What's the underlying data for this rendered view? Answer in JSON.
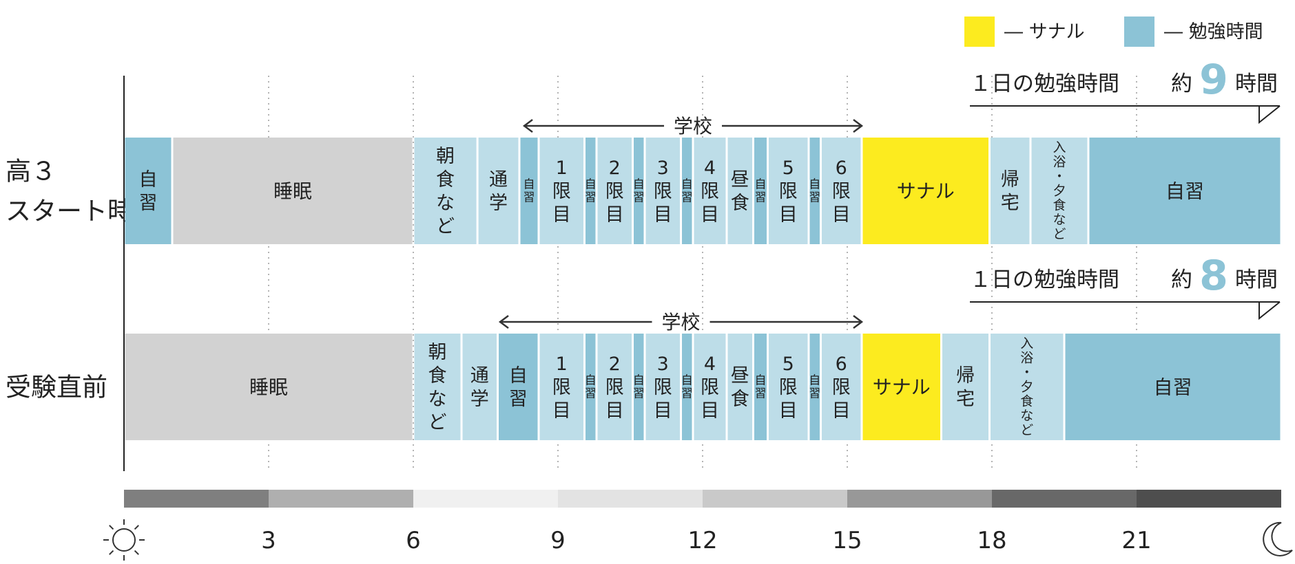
{
  "legend": [
    {
      "label": "― サナル",
      "color": "#FCEB1F"
    },
    {
      "label": "― 勉強時間",
      "color": "#8CC3D6"
    }
  ],
  "colors": {
    "study": "#8CC3D6",
    "other": "#BDDDE8",
    "sleep": "#D2D2D2",
    "sanaru": "#FCEB1F"
  },
  "time_axis": {
    "range": [
      0,
      24
    ],
    "tick_labels": [
      {
        "hour": 3,
        "label": "3"
      },
      {
        "hour": 6,
        "label": "6"
      },
      {
        "hour": 9,
        "label": "9"
      },
      {
        "hour": 12,
        "label": "12"
      },
      {
        "hour": 15,
        "label": "15"
      },
      {
        "hour": 18,
        "label": "18"
      },
      {
        "hour": 21,
        "label": "21"
      }
    ],
    "start_icon": "sun-icon",
    "end_icon": "moon-icon",
    "daylight_bands": [
      {
        "from": 0,
        "to": 3,
        "color": "#7F7F7F"
      },
      {
        "from": 3,
        "to": 6,
        "color": "#AFAFAF"
      },
      {
        "from": 6,
        "to": 9,
        "color": "#F0F0F0"
      },
      {
        "from": 9,
        "to": 12,
        "color": "#E3E3E3"
      },
      {
        "from": 12,
        "to": 15,
        "color": "#C9C9C9"
      },
      {
        "from": 15,
        "to": 18,
        "color": "#989898"
      },
      {
        "from": 18,
        "to": 21,
        "color": "#686868"
      },
      {
        "from": 21,
        "to": 24,
        "color": "#4E4E4E"
      }
    ]
  },
  "rows": [
    {
      "label_lines": [
        "高３",
        "スタート時"
      ],
      "summary": {
        "prefix": "１日の勉強時間",
        "approx": "約",
        "hours": "9",
        "unit": "時間"
      },
      "school": {
        "label": "学校",
        "from": 8.3,
        "to": 15.3
      },
      "blocks": [
        {
          "label": "自習",
          "from": 0,
          "to": 1,
          "kind": "study",
          "vertical": true
        },
        {
          "label": "睡眠",
          "from": 1,
          "to": 6,
          "kind": "sleep",
          "vertical": false
        },
        {
          "label": "朝食など",
          "from": 6,
          "to": 7.33,
          "kind": "other",
          "vertical": true
        },
        {
          "label": "通学",
          "from": 7.33,
          "to": 8.2,
          "kind": "other",
          "vertical": true
        },
        {
          "label": "自習",
          "from": 8.2,
          "to": 8.6,
          "kind": "study",
          "vertical": true,
          "small": true
        },
        {
          "label": "1限目",
          "from": 8.6,
          "to": 9.55,
          "kind": "other",
          "vertical": true
        },
        {
          "label": "自習",
          "from": 9.55,
          "to": 9.8,
          "kind": "study",
          "vertical": true,
          "small": true
        },
        {
          "label": "2限目",
          "from": 9.8,
          "to": 10.55,
          "kind": "other",
          "vertical": true
        },
        {
          "label": "自習",
          "from": 10.55,
          "to": 10.8,
          "kind": "study",
          "vertical": true,
          "small": true
        },
        {
          "label": "3限目",
          "from": 10.8,
          "to": 11.55,
          "kind": "other",
          "vertical": true
        },
        {
          "label": "自習",
          "from": 11.55,
          "to": 11.8,
          "kind": "study",
          "vertical": true,
          "small": true
        },
        {
          "label": "4限目",
          "from": 11.8,
          "to": 12.5,
          "kind": "other",
          "vertical": true
        },
        {
          "label": "昼食",
          "from": 12.5,
          "to": 13.05,
          "kind": "other",
          "vertical": true
        },
        {
          "label": "自習",
          "from": 13.05,
          "to": 13.35,
          "kind": "study",
          "vertical": true,
          "small": true
        },
        {
          "label": "5限目",
          "from": 13.35,
          "to": 14.2,
          "kind": "other",
          "vertical": true
        },
        {
          "label": "自習",
          "from": 14.2,
          "to": 14.45,
          "kind": "study",
          "vertical": true,
          "small": true
        },
        {
          "label": "6限目",
          "from": 14.45,
          "to": 15.3,
          "kind": "other",
          "vertical": true
        },
        {
          "label": "サナル",
          "from": 15.3,
          "to": 17.95,
          "kind": "sanaru",
          "vertical": false
        },
        {
          "label": "帰宅",
          "from": 17.95,
          "to": 18.8,
          "kind": "other",
          "vertical": true
        },
        {
          "label": "入浴・夕食など",
          "from": 18.8,
          "to": 20,
          "kind": "other",
          "vertical": true,
          "small": true
        },
        {
          "label": "自習",
          "from": 20,
          "to": 24,
          "kind": "study",
          "vertical": false
        }
      ]
    },
    {
      "label_lines": [
        "受験直前"
      ],
      "summary": {
        "prefix": "１日の勉強時間",
        "approx": "約",
        "hours": "8",
        "unit": "時間"
      },
      "school": {
        "label": "学校",
        "from": 7.8,
        "to": 15.3
      },
      "blocks": [
        {
          "label": "睡眠",
          "from": 0,
          "to": 6,
          "kind": "sleep",
          "vertical": false
        },
        {
          "label": "朝食など",
          "from": 6,
          "to": 7,
          "kind": "other",
          "vertical": true
        },
        {
          "label": "通学",
          "from": 7,
          "to": 7.75,
          "kind": "other",
          "vertical": true
        },
        {
          "label": "自習",
          "from": 7.75,
          "to": 8.6,
          "kind": "study",
          "vertical": true
        },
        {
          "label": "1限目",
          "from": 8.6,
          "to": 9.55,
          "kind": "other",
          "vertical": true
        },
        {
          "label": "自習",
          "from": 9.55,
          "to": 9.8,
          "kind": "study",
          "vertical": true,
          "small": true
        },
        {
          "label": "2限目",
          "from": 9.8,
          "to": 10.55,
          "kind": "other",
          "vertical": true
        },
        {
          "label": "自習",
          "from": 10.55,
          "to": 10.8,
          "kind": "study",
          "vertical": true,
          "small": true
        },
        {
          "label": "3限目",
          "from": 10.8,
          "to": 11.55,
          "kind": "other",
          "vertical": true
        },
        {
          "label": "自習",
          "from": 11.55,
          "to": 11.8,
          "kind": "study",
          "vertical": true,
          "small": true
        },
        {
          "label": "4限目",
          "from": 11.8,
          "to": 12.5,
          "kind": "other",
          "vertical": true
        },
        {
          "label": "昼食",
          "from": 12.5,
          "to": 13.05,
          "kind": "other",
          "vertical": true
        },
        {
          "label": "自習",
          "from": 13.05,
          "to": 13.35,
          "kind": "study",
          "vertical": true,
          "small": true
        },
        {
          "label": "5限目",
          "from": 13.35,
          "to": 14.2,
          "kind": "other",
          "vertical": true
        },
        {
          "label": "自習",
          "from": 14.2,
          "to": 14.45,
          "kind": "study",
          "vertical": true,
          "small": true
        },
        {
          "label": "6限目",
          "from": 14.45,
          "to": 15.3,
          "kind": "other",
          "vertical": true
        },
        {
          "label": "サナル",
          "from": 15.3,
          "to": 16.95,
          "kind": "sanaru",
          "vertical": false
        },
        {
          "label": "帰宅",
          "from": 16.95,
          "to": 17.95,
          "kind": "other",
          "vertical": true
        },
        {
          "label": "入浴・夕食など",
          "from": 17.95,
          "to": 19.5,
          "kind": "other",
          "vertical": true,
          "small": true
        },
        {
          "label": "自習",
          "from": 19.5,
          "to": 24,
          "kind": "study",
          "vertical": false
        }
      ]
    }
  ]
}
